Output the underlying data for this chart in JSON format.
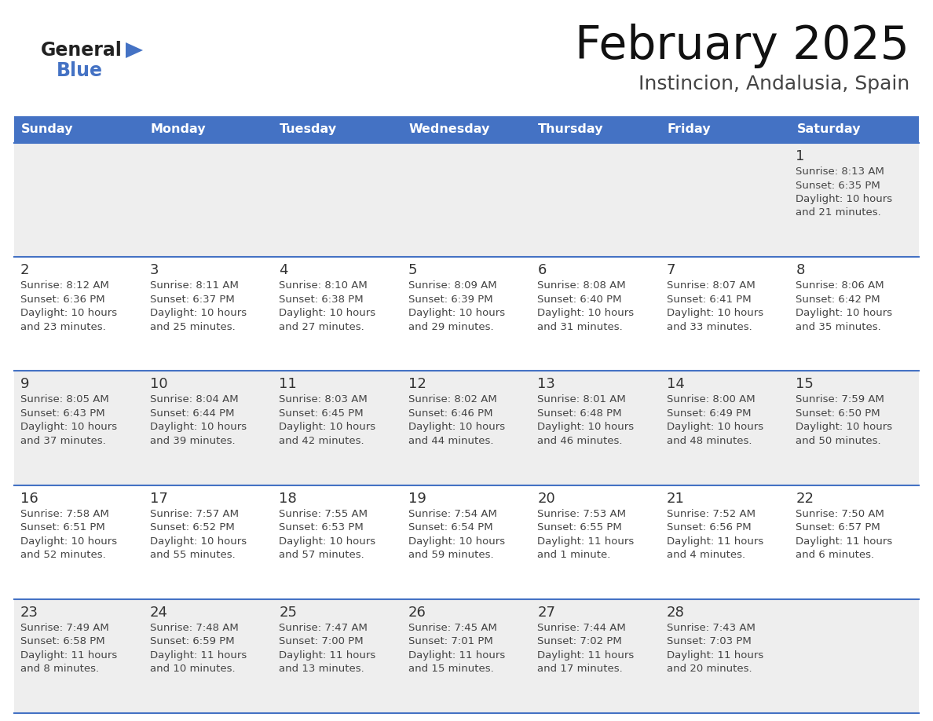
{
  "title": "February 2025",
  "subtitle": "Instincion, Andalusia, Spain",
  "header_color": "#4472C4",
  "header_text_color": "#FFFFFF",
  "days_of_week": [
    "Sunday",
    "Monday",
    "Tuesday",
    "Wednesday",
    "Thursday",
    "Friday",
    "Saturday"
  ],
  "bg_color": "#FFFFFF",
  "row_colors": [
    "#EEEEEE",
    "#FFFFFF",
    "#EEEEEE",
    "#FFFFFF",
    "#EEEEEE"
  ],
  "cell_text_color": "#444444",
  "day_num_color": "#333333",
  "border_color": "#4472C4",
  "logo_general_color": "#222222",
  "logo_blue_color": "#4472C4",
  "logo_triangle_color": "#4472C4",
  "calendar_data": [
    [
      null,
      null,
      null,
      null,
      null,
      null,
      {
        "day": 1,
        "sunrise": "8:13 AM",
        "sunset": "6:35 PM",
        "daylight": "10 hours",
        "daylight2": "and 21 minutes."
      }
    ],
    [
      {
        "day": 2,
        "sunrise": "8:12 AM",
        "sunset": "6:36 PM",
        "daylight": "10 hours",
        "daylight2": "and 23 minutes."
      },
      {
        "day": 3,
        "sunrise": "8:11 AM",
        "sunset": "6:37 PM",
        "daylight": "10 hours",
        "daylight2": "and 25 minutes."
      },
      {
        "day": 4,
        "sunrise": "8:10 AM",
        "sunset": "6:38 PM",
        "daylight": "10 hours",
        "daylight2": "and 27 minutes."
      },
      {
        "day": 5,
        "sunrise": "8:09 AM",
        "sunset": "6:39 PM",
        "daylight": "10 hours",
        "daylight2": "and 29 minutes."
      },
      {
        "day": 6,
        "sunrise": "8:08 AM",
        "sunset": "6:40 PM",
        "daylight": "10 hours",
        "daylight2": "and 31 minutes."
      },
      {
        "day": 7,
        "sunrise": "8:07 AM",
        "sunset": "6:41 PM",
        "daylight": "10 hours",
        "daylight2": "and 33 minutes."
      },
      {
        "day": 8,
        "sunrise": "8:06 AM",
        "sunset": "6:42 PM",
        "daylight": "10 hours",
        "daylight2": "and 35 minutes."
      }
    ],
    [
      {
        "day": 9,
        "sunrise": "8:05 AM",
        "sunset": "6:43 PM",
        "daylight": "10 hours",
        "daylight2": "and 37 minutes."
      },
      {
        "day": 10,
        "sunrise": "8:04 AM",
        "sunset": "6:44 PM",
        "daylight": "10 hours",
        "daylight2": "and 39 minutes."
      },
      {
        "day": 11,
        "sunrise": "8:03 AM",
        "sunset": "6:45 PM",
        "daylight": "10 hours",
        "daylight2": "and 42 minutes."
      },
      {
        "day": 12,
        "sunrise": "8:02 AM",
        "sunset": "6:46 PM",
        "daylight": "10 hours",
        "daylight2": "and 44 minutes."
      },
      {
        "day": 13,
        "sunrise": "8:01 AM",
        "sunset": "6:48 PM",
        "daylight": "10 hours",
        "daylight2": "and 46 minutes."
      },
      {
        "day": 14,
        "sunrise": "8:00 AM",
        "sunset": "6:49 PM",
        "daylight": "10 hours",
        "daylight2": "and 48 minutes."
      },
      {
        "day": 15,
        "sunrise": "7:59 AM",
        "sunset": "6:50 PM",
        "daylight": "10 hours",
        "daylight2": "and 50 minutes."
      }
    ],
    [
      {
        "day": 16,
        "sunrise": "7:58 AM",
        "sunset": "6:51 PM",
        "daylight": "10 hours",
        "daylight2": "and 52 minutes."
      },
      {
        "day": 17,
        "sunrise": "7:57 AM",
        "sunset": "6:52 PM",
        "daylight": "10 hours",
        "daylight2": "and 55 minutes."
      },
      {
        "day": 18,
        "sunrise": "7:55 AM",
        "sunset": "6:53 PM",
        "daylight": "10 hours",
        "daylight2": "and 57 minutes."
      },
      {
        "day": 19,
        "sunrise": "7:54 AM",
        "sunset": "6:54 PM",
        "daylight": "10 hours",
        "daylight2": "and 59 minutes."
      },
      {
        "day": 20,
        "sunrise": "7:53 AM",
        "sunset": "6:55 PM",
        "daylight": "11 hours",
        "daylight2": "and 1 minute."
      },
      {
        "day": 21,
        "sunrise": "7:52 AM",
        "sunset": "6:56 PM",
        "daylight": "11 hours",
        "daylight2": "and 4 minutes."
      },
      {
        "day": 22,
        "sunrise": "7:50 AM",
        "sunset": "6:57 PM",
        "daylight": "11 hours",
        "daylight2": "and 6 minutes."
      }
    ],
    [
      {
        "day": 23,
        "sunrise": "7:49 AM",
        "sunset": "6:58 PM",
        "daylight": "11 hours",
        "daylight2": "and 8 minutes."
      },
      {
        "day": 24,
        "sunrise": "7:48 AM",
        "sunset": "6:59 PM",
        "daylight": "11 hours",
        "daylight2": "and 10 minutes."
      },
      {
        "day": 25,
        "sunrise": "7:47 AM",
        "sunset": "7:00 PM",
        "daylight": "11 hours",
        "daylight2": "and 13 minutes."
      },
      {
        "day": 26,
        "sunrise": "7:45 AM",
        "sunset": "7:01 PM",
        "daylight": "11 hours",
        "daylight2": "and 15 minutes."
      },
      {
        "day": 27,
        "sunrise": "7:44 AM",
        "sunset": "7:02 PM",
        "daylight": "11 hours",
        "daylight2": "and 17 minutes."
      },
      {
        "day": 28,
        "sunrise": "7:43 AM",
        "sunset": "7:03 PM",
        "daylight": "11 hours",
        "daylight2": "and 20 minutes."
      },
      null
    ]
  ]
}
